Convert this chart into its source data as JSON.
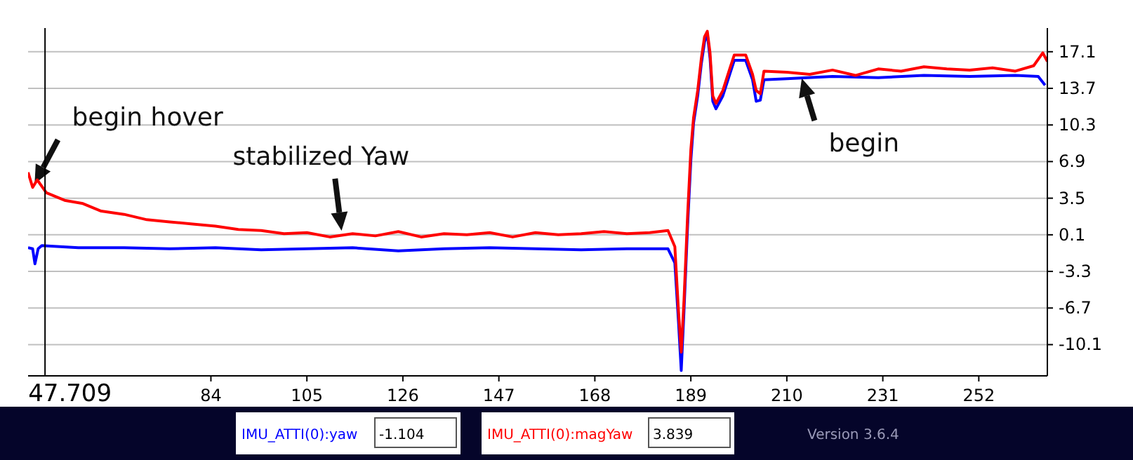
{
  "chart_data": {
    "type": "line",
    "legend": "bottom",
    "grid": "y",
    "marker": "none",
    "line_style": "solid",
    "xlim": [
      44,
      267
    ],
    "xticks": [
      84,
      105,
      126,
      147,
      168,
      189,
      210,
      231,
      252
    ],
    "ylim": [
      -13,
      19.3
    ],
    "yticks": [
      17.1,
      13.7,
      10.3,
      6.9,
      3.5,
      0.1,
      -3.3,
      -6.7,
      -10.1
    ],
    "series": [
      {
        "name": "IMU_ATTI(0):yaw",
        "color": "#0000ff",
        "x": [
          44,
          45,
          45.5,
          46.2,
          47,
          55,
          65,
          75,
          85,
          95,
          105,
          115,
          125,
          135,
          145,
          155,
          165,
          175,
          183,
          184,
          185.5,
          186.3,
          186.9,
          187.5,
          188.3,
          189,
          189.6,
          190.5,
          191.3,
          192,
          192.6,
          193.2,
          193.8,
          194.5,
          196,
          197.5,
          198.5,
          201,
          202.5,
          203.3,
          204.2,
          205,
          210,
          220,
          230,
          240,
          250,
          260,
          265,
          266.5
        ],
        "values": [
          -1.1,
          -1.2,
          -2.6,
          -1.2,
          -0.9,
          -1.1,
          -1.1,
          -1.2,
          -1.1,
          -1.3,
          -1.2,
          -1.1,
          -1.4,
          -1.2,
          -1.1,
          -1.2,
          -1.3,
          -1.2,
          -1.2,
          -1.2,
          -2.5,
          -8,
          -12.5,
          -7,
          1,
          7,
          10.5,
          13,
          16,
          18,
          18.8,
          16.5,
          12.5,
          11.8,
          13,
          15,
          16.3,
          16.3,
          14.5,
          12.5,
          12.6,
          14.5,
          14.6,
          14.8,
          14.7,
          14.9,
          14.8,
          14.9,
          14.8,
          14
        ]
      },
      {
        "name": "IMU_ATTI(0):magYaw",
        "color": "#ff0000",
        "x": [
          44,
          45,
          46,
          48,
          52,
          56,
          60,
          65,
          70,
          75,
          80,
          85,
          90,
          95,
          100,
          105,
          110,
          115,
          120,
          125,
          130,
          135,
          140,
          145,
          150,
          155,
          160,
          165,
          170,
          175,
          180,
          184,
          185.5,
          186.3,
          186.9,
          187.5,
          188.3,
          189,
          189.6,
          190.5,
          191.3,
          192,
          192.6,
          193.2,
          193.8,
          194.5,
          196,
          197.5,
          198.5,
          201,
          202.5,
          203.3,
          204.2,
          205,
          210,
          215,
          220,
          225,
          230,
          235,
          240,
          245,
          250,
          255,
          260,
          264,
          266,
          267
        ],
        "values": [
          5.9,
          4.5,
          5.2,
          4,
          3.3,
          3,
          2.3,
          2,
          1.5,
          1.3,
          1.1,
          0.9,
          0.6,
          0.5,
          0.2,
          0.3,
          -0.1,
          0.2,
          0,
          0.4,
          -0.1,
          0.2,
          0.1,
          0.3,
          -0.1,
          0.3,
          0.1,
          0.2,
          0.4,
          0.2,
          0.3,
          0.5,
          -1,
          -7,
          -10.8,
          -6,
          2,
          8,
          11,
          13.5,
          16.5,
          18.5,
          19,
          17,
          13,
          12.3,
          13.5,
          15.5,
          16.8,
          16.8,
          15,
          13.5,
          13.2,
          15.3,
          15.2,
          15,
          15.4,
          14.9,
          15.5,
          15.3,
          15.7,
          15.5,
          15.4,
          15.6,
          15.3,
          15.8,
          17,
          16.2
        ]
      }
    ],
    "ref_lines": [
      {
        "axis": "x",
        "value": 47.709,
        "label": "47.709",
        "color": "#000000"
      }
    ],
    "annotations": [
      {
        "text": "begin hover",
        "x": 45,
        "y": 4.5
      },
      {
        "text": "stabilized Yaw",
        "x": 112.7,
        "y": 0.1
      },
      {
        "text": "begin",
        "x": 213,
        "y": 15
      },
      "-1.104",
      "3.839",
      "Version 3.6.4"
    ]
  }
}
